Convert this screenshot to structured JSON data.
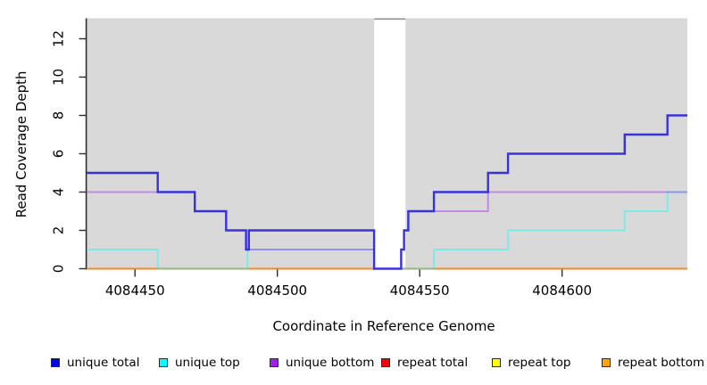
{
  "chart_data": {
    "type": "line",
    "subtype": "step-coverage",
    "title": "",
    "xlabel": "Coordinate in Reference Genome",
    "ylabel": "Read Coverage Depth",
    "xlim": [
      4084433,
      4084644
    ],
    "ylim": [
      0,
      13.1
    ],
    "x_ticks": [
      4084450,
      4084500,
      4084550,
      4084600
    ],
    "y_ticks": [
      0,
      2,
      4,
      6,
      8,
      10,
      12
    ],
    "grid": false,
    "panel_background": "#d9d9d9",
    "page_background": "#ffffff",
    "coverage_gap": {
      "start": 4084534,
      "end": 4084545,
      "top_edge_color": "#8f8f8f"
    },
    "series": [
      {
        "name": "repeat total",
        "color": "#dd0000",
        "width": 2,
        "points": [
          [
            4084433,
            0
          ],
          [
            4084644,
            0
          ]
        ]
      },
      {
        "name": "repeat top",
        "color": "#ffff00",
        "width": 2,
        "points": [
          [
            4084433,
            0
          ],
          [
            4084644,
            0
          ]
        ]
      },
      {
        "name": "repeat bottom",
        "color": "#f8871f",
        "width": 2,
        "points": [
          [
            4084433,
            0
          ],
          [
            4084644,
            0
          ]
        ]
      },
      {
        "name": "unique top",
        "color": "rgba(0,255,255,0.42)",
        "width": 2,
        "points": [
          [
            4084433,
            1
          ],
          [
            4084458,
            0
          ],
          [
            4084489.5,
            1
          ],
          [
            4084534,
            0
          ],
          [
            4084555,
            1
          ],
          [
            4084581,
            2
          ],
          [
            4084622,
            3
          ],
          [
            4084637,
            4
          ],
          [
            4084644,
            4
          ]
        ]
      },
      {
        "name": "unique bottom",
        "color": "rgba(160,32,240,0.42)",
        "width": 2,
        "points": [
          [
            4084433,
            4
          ],
          [
            4084471,
            3
          ],
          [
            4084482,
            2
          ],
          [
            4084489,
            1
          ],
          [
            4084534,
            0
          ],
          [
            4084543.5,
            1
          ],
          [
            4084544.5,
            2
          ],
          [
            4084546,
            3
          ],
          [
            4084574,
            4
          ],
          [
            4084644,
            4
          ]
        ]
      },
      {
        "name": "unique total",
        "color": "#3832dc",
        "width": 2.4,
        "points": [
          [
            4084433,
            5
          ],
          [
            4084458,
            4
          ],
          [
            4084471,
            3
          ],
          [
            4084482,
            2
          ],
          [
            4084489,
            1
          ],
          [
            4084490,
            2
          ],
          [
            4084534,
            0
          ],
          [
            4084543.5,
            1
          ],
          [
            4084544.5,
            2
          ],
          [
            4084546,
            3
          ],
          [
            4084555,
            4
          ],
          [
            4084574,
            5
          ],
          [
            4084581,
            6
          ],
          [
            4084622,
            7
          ],
          [
            4084637,
            8
          ],
          [
            4084644,
            8
          ]
        ]
      }
    ],
    "legend": {
      "position": "bottom",
      "entries": [
        {
          "label": "unique total",
          "color": "#0000f0"
        },
        {
          "label": "unique top",
          "color": "#00ffff"
        },
        {
          "label": "unique bottom",
          "color": "#a020f0"
        },
        {
          "label": "repeat total",
          "color": "#ff0000"
        },
        {
          "label": "repeat top",
          "color": "#ffff00"
        },
        {
          "label": "repeat bottom",
          "color": "#ffa500"
        }
      ]
    }
  }
}
